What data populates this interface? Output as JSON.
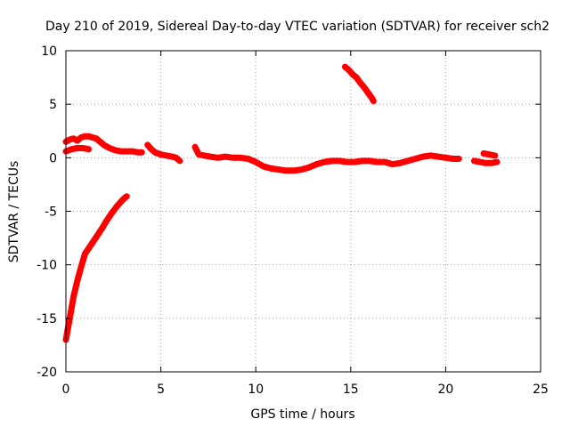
{
  "chart_data": {
    "type": "scatter",
    "title": "Day 210 of 2019, Sidereal Day-to-day VTEC variation (SDTVAR) for receiver sch2",
    "xlabel": "GPS time / hours",
    "ylabel": "SDTVAR / TECUs",
    "xlim": [
      0,
      25
    ],
    "ylim": [
      -20,
      10
    ],
    "xticks": [
      0,
      5,
      10,
      15,
      20,
      25
    ],
    "yticks": [
      -20,
      -15,
      -10,
      -5,
      0,
      5,
      10
    ],
    "grid": true,
    "marker_color": "#ff0000",
    "series": [
      {
        "name": "SDTVAR",
        "segments": [
          {
            "x": [
              0.0,
              0.2,
              0.4,
              0.6,
              0.8,
              1.0,
              1.3,
              1.6,
              1.9,
              2.1,
              2.4,
              2.7,
              3.0,
              3.2
            ],
            "y": [
              -17.0,
              -15.0,
              -13.0,
              -11.5,
              -10.2,
              -9.0,
              -8.2,
              -7.4,
              -6.6,
              -6.0,
              -5.2,
              -4.5,
              -3.9,
              -3.6
            ]
          },
          {
            "x": [
              0.0,
              0.3,
              0.6,
              0.9,
              1.2
            ],
            "y": [
              0.6,
              0.8,
              0.9,
              0.9,
              0.8
            ]
          },
          {
            "x": [
              0.0,
              0.2,
              0.4,
              0.6,
              0.8,
              1.0,
              1.2,
              1.4,
              1.6,
              1.8,
              2.0,
              2.3,
              2.6,
              2.9,
              3.2,
              3.5,
              3.8,
              4.0
            ],
            "y": [
              1.5,
              1.7,
              1.8,
              1.6,
              1.9,
              2.0,
              2.0,
              1.9,
              1.8,
              1.5,
              1.2,
              0.9,
              0.7,
              0.6,
              0.6,
              0.6,
              0.5,
              0.5
            ]
          },
          {
            "x": [
              4.3,
              4.5,
              4.7,
              5.0,
              5.3,
              5.6,
              5.8,
              6.0
            ],
            "y": [
              1.2,
              0.8,
              0.5,
              0.3,
              0.2,
              0.1,
              0.0,
              -0.3
            ]
          },
          {
            "x": [
              6.8,
              7.0,
              7.3,
              7.6,
              8.0,
              8.4,
              8.8,
              9.2,
              9.6,
              10.0,
              10.4,
              10.8,
              11.2,
              11.6,
              12.0,
              12.4,
              12.8,
              13.2,
              13.6,
              14.0,
              14.4,
              14.8,
              15.2,
              15.6,
              16.0,
              16.4,
              16.8,
              17.2,
              17.6,
              18.0,
              18.4,
              18.8,
              19.2,
              19.6,
              20.0,
              20.4,
              20.7
            ],
            "y": [
              1.0,
              0.3,
              0.2,
              0.1,
              0.0,
              0.1,
              0.0,
              0.0,
              -0.1,
              -0.4,
              -0.8,
              -1.0,
              -1.1,
              -1.2,
              -1.2,
              -1.1,
              -0.9,
              -0.6,
              -0.4,
              -0.3,
              -0.3,
              -0.4,
              -0.4,
              -0.3,
              -0.3,
              -0.4,
              -0.4,
              -0.6,
              -0.5,
              -0.3,
              -0.1,
              0.1,
              0.2,
              0.1,
              0.0,
              -0.1,
              -0.1
            ]
          },
          {
            "x": [
              21.5,
              21.8,
              22.1,
              22.4,
              22.7
            ],
            "y": [
              -0.3,
              -0.4,
              -0.5,
              -0.5,
              -0.4
            ]
          },
          {
            "x": [
              22.0,
              22.3,
              22.6
            ],
            "y": [
              0.4,
              0.3,
              0.2
            ]
          },
          {
            "x": [
              14.7,
              14.9,
              15.1,
              15.3,
              15.5,
              15.7,
              15.9,
              16.1,
              16.2
            ],
            "y": [
              8.5,
              8.2,
              7.8,
              7.5,
              7.0,
              6.6,
              6.1,
              5.6,
              5.3
            ]
          }
        ]
      }
    ]
  }
}
